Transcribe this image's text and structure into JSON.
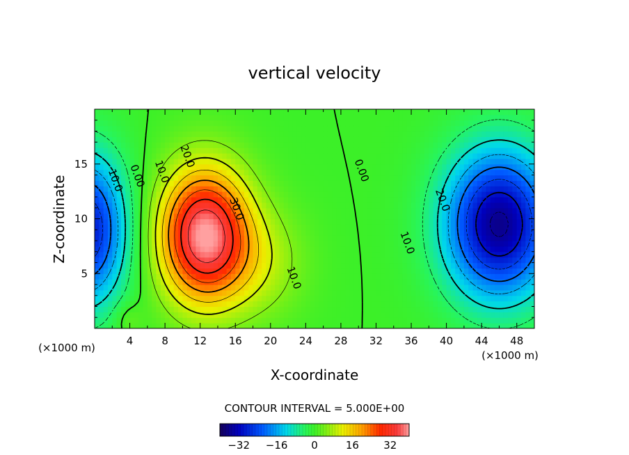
{
  "chart_data": {
    "type": "heatmap",
    "title": "vertical velocity",
    "xlabel": "X-coordinate",
    "ylabel": "Z-coordinate",
    "x_units": "(×1000 m)",
    "z_units": "(×1000 m)",
    "xlim": [
      0,
      50
    ],
    "zlim": [
      0,
      20
    ],
    "x_ticks": [
      "4",
      "8",
      "12",
      "16",
      "20",
      "24",
      "28",
      "32",
      "36",
      "40",
      "44",
      "48"
    ],
    "z_ticks": [
      "5",
      "10",
      "15"
    ],
    "contour_interval_text": "CONTOUR INTERVAL = 5.000E+00",
    "contour_labels": [
      {
        "text": "10.0",
        "x": 2.0,
        "z": 13.4
      },
      {
        "text": "0.00",
        "x": 4.5,
        "z": 13.8
      },
      {
        "text": "10.0",
        "x": 7.3,
        "z": 14.2
      },
      {
        "text": "20.0",
        "x": 10.2,
        "z": 15.6
      },
      {
        "text": "30.0",
        "x": 15.8,
        "z": 10.8
      },
      {
        "text": "10.0",
        "x": 22.3,
        "z": 4.5
      },
      {
        "text": "0.00",
        "x": 30.0,
        "z": 14.3
      },
      {
        "text": "10.0",
        "x": 35.2,
        "z": 7.7
      },
      {
        "text": "20.0",
        "x": 39.2,
        "z": 11.6
      }
    ],
    "colorbar": {
      "ticks": [
        "−32",
        "−16",
        "0",
        "16",
        "32"
      ],
      "tick_values": [
        -32,
        -16,
        0,
        16,
        32
      ],
      "range": [
        -40,
        40
      ]
    }
  }
}
